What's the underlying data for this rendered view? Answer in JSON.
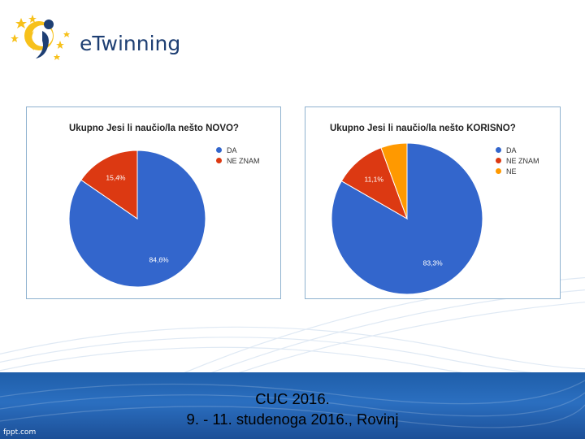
{
  "header": {
    "logo_text": "eTwinning"
  },
  "chart_data": [
    {
      "type": "pie",
      "title": "Ukupno Jesi li naučio/la nešto NOVO?",
      "categories": [
        "DA",
        "NE ZNAM"
      ],
      "values": [
        84.6,
        15.4
      ],
      "labels": [
        "84,6%",
        "15,4%"
      ],
      "colors": [
        "#3366cc",
        "#dc3912"
      ],
      "legend_position": "right"
    },
    {
      "type": "pie",
      "title": "Ukupno Jesi li naučio/la nešto KORISNO?",
      "categories": [
        "DA",
        "NE ZNAM",
        "NE"
      ],
      "values": [
        83.3,
        11.1,
        5.6
      ],
      "labels": [
        "83,3%",
        "11,1%",
        ""
      ],
      "colors": [
        "#3366cc",
        "#dc3912",
        "#ff9900"
      ],
      "legend_position": "right"
    }
  ],
  "footer": {
    "line1": "CUC 2016.",
    "line2": "9. - 11. studenoga 2016., Rovinj",
    "watermark": "fppt.com"
  },
  "colors": {
    "footer_blue": "#2b6fc0",
    "border": "#8fb2cf"
  }
}
